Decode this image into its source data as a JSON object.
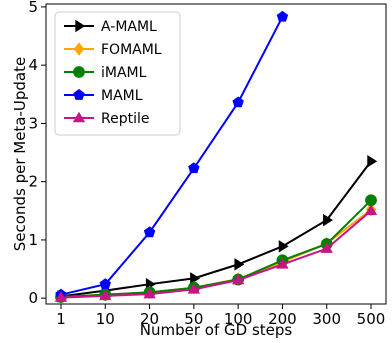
{
  "chart_data": {
    "type": "line",
    "xlabel": "Number of GD steps",
    "ylabel": "Seconds per Meta-Update",
    "categories": [
      "1",
      "10",
      "20",
      "50",
      "100",
      "200",
      "300",
      "500"
    ],
    "yticks": [
      "0",
      "1",
      "2",
      "3",
      "4",
      "5"
    ],
    "ylim": [
      -0.1,
      5.05
    ],
    "grid": false,
    "legend_position": "top-left",
    "series": [
      {
        "name": "A-MAML",
        "color": "#000000",
        "marker": "triangle-right",
        "x": [
          "1",
          "10",
          "20",
          "50",
          "100",
          "200",
          "300",
          "500"
        ],
        "values": [
          0.03,
          0.13,
          0.24,
          0.34,
          0.58,
          0.89,
          1.34,
          2.35
        ]
      },
      {
        "name": "FOMAML",
        "color": "#ffa500",
        "marker": "diamond",
        "x": [
          "1",
          "10",
          "20",
          "50",
          "100",
          "200",
          "300",
          "500"
        ],
        "values": [
          0.02,
          0.06,
          0.1,
          0.18,
          0.33,
          0.62,
          0.94,
          1.52
        ]
      },
      {
        "name": "iMAML",
        "color": "#008000",
        "marker": "circle",
        "x": [
          "1",
          "10",
          "20",
          "50",
          "100",
          "200",
          "300",
          "500"
        ],
        "values": [
          0.02,
          0.06,
          0.1,
          0.18,
          0.32,
          0.65,
          0.93,
          1.68
        ]
      },
      {
        "name": "MAML",
        "color": "#0000ff",
        "marker": "pentagon",
        "x": [
          "1",
          "10",
          "20",
          "50",
          "100",
          "200"
        ],
        "values": [
          0.06,
          0.24,
          1.13,
          2.23,
          3.36,
          4.83
        ]
      },
      {
        "name": "Reptile",
        "color": "#c71585",
        "marker": "triangle-up",
        "x": [
          "1",
          "10",
          "20",
          "50",
          "100",
          "200",
          "300",
          "500"
        ],
        "values": [
          0.01,
          0.04,
          0.07,
          0.15,
          0.31,
          0.58,
          0.85,
          1.5
        ]
      }
    ]
  }
}
